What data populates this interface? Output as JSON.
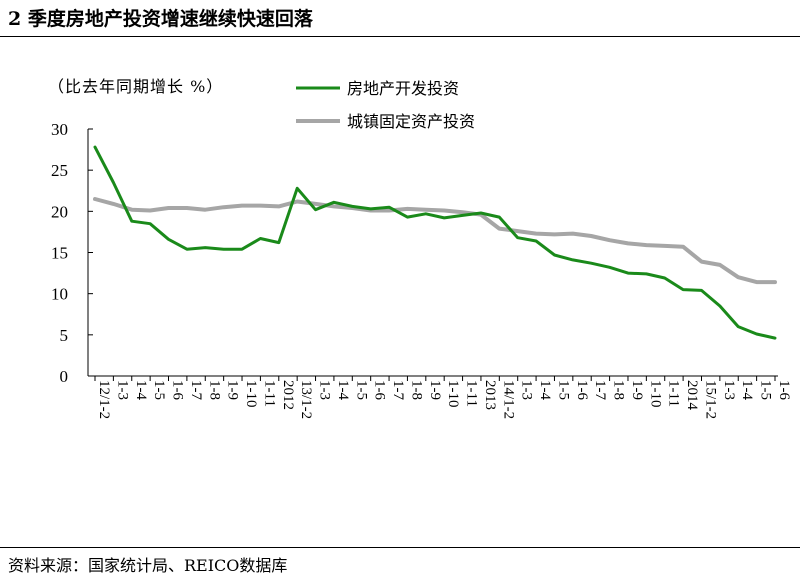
{
  "title": "2 季度房地产投资增速继续快速回落",
  "source": "资料来源：国家统计局、REICO数据库",
  "chart_data": {
    "type": "line",
    "title": "2 季度房地产投资增速继续快速回落",
    "ylabel": "（比去年同期增长 %）",
    "xlabel": "",
    "ylim": [
      0,
      30
    ],
    "yticks": [
      0,
      5,
      10,
      15,
      20,
      25,
      30
    ],
    "grid": false,
    "legend_position": "top-center",
    "x_labels": [
      "12/1-2",
      "1-3",
      "1-4",
      "1-5",
      "1-6",
      "1-7",
      "1-8",
      "1-9",
      "1-10",
      "1-11",
      "2012",
      "13/1-2",
      "1-3",
      "1-4",
      "1-5",
      "1-6",
      "1-7",
      "1-8",
      "1-9",
      "1-10",
      "1-11",
      "2013",
      "14/1-2",
      "1-3",
      "1-4",
      "1-5",
      "1-6",
      "1-7",
      "1-8",
      "1-9",
      "1-10",
      "1-11",
      "2014",
      "15/1-2",
      "1-3",
      "1-4",
      "1-5",
      "1-6"
    ],
    "series": [
      {
        "name": "房地产开发投资",
        "color": "#1a8a1a",
        "values": [
          27.8,
          23.5,
          18.8,
          18.5,
          16.6,
          15.4,
          15.6,
          15.4,
          15.4,
          16.7,
          16.2,
          22.8,
          20.2,
          21.1,
          20.6,
          20.3,
          20.5,
          19.3,
          19.7,
          19.2,
          19.5,
          19.8,
          19.3,
          16.8,
          16.4,
          14.7,
          14.1,
          13.7,
          13.2,
          12.5,
          12.4,
          11.9,
          10.5,
          10.4,
          8.5,
          6.0,
          5.1,
          4.6
        ]
      },
      {
        "name": "城镇固定资产投资",
        "color": "#a6a6a6",
        "values": [
          21.5,
          20.9,
          20.2,
          20.1,
          20.4,
          20.4,
          20.2,
          20.5,
          20.7,
          20.7,
          20.6,
          21.2,
          20.9,
          20.6,
          20.4,
          20.1,
          20.1,
          20.3,
          20.2,
          20.1,
          19.9,
          19.6,
          17.9,
          17.6,
          17.3,
          17.2,
          17.3,
          17.0,
          16.5,
          16.1,
          15.9,
          15.8,
          15.7,
          13.9,
          13.5,
          12.0,
          11.4,
          11.4
        ]
      }
    ]
  }
}
